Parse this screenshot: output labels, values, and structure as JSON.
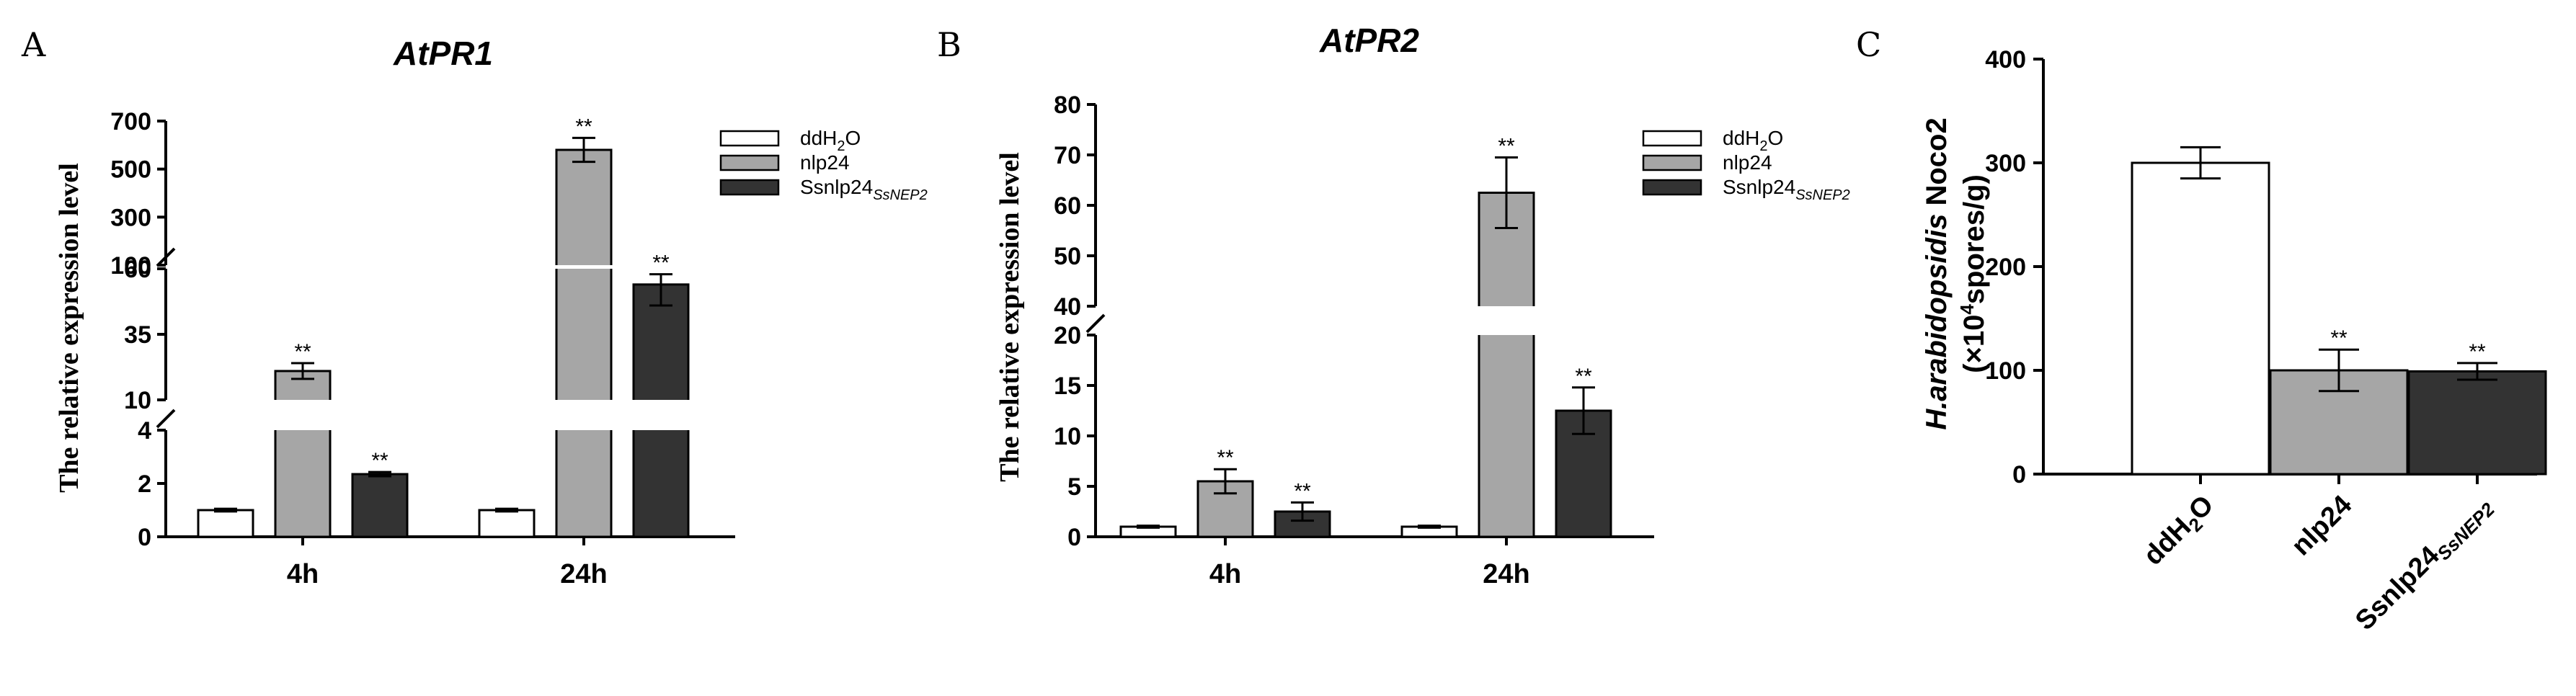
{
  "panels": {
    "A": {
      "letter": "A"
    },
    "B": {
      "letter": "B"
    },
    "C": {
      "letter": "C"
    }
  },
  "legend": {
    "items": [
      {
        "name": "ddH2O",
        "base": "ddH",
        "sub": "2",
        "tail": "O",
        "color": "#ffffff"
      },
      {
        "name": "nlp24",
        "base": "nlp24",
        "sub": "",
        "tail": "",
        "color": "#a6a6a6"
      },
      {
        "name": "Ssnlp24SsNEP2",
        "base": "Ssnlp24",
        "sub": "SsNEP2",
        "tail": "",
        "color": "#333333"
      }
    ]
  },
  "chart_data": [
    {
      "panel": "A",
      "type": "bar",
      "title": "AtPR1",
      "ylabel": "The relative expression level",
      "categories": [
        "4h",
        "24h"
      ],
      "broken_axis": true,
      "y_segments": [
        {
          "range": [
            0,
            4
          ],
          "ticks": [
            "0",
            "2",
            "4"
          ]
        },
        {
          "range": [
            10,
            60
          ],
          "ticks": [
            "10",
            "35",
            "60"
          ]
        },
        {
          "range": [
            100,
            700
          ],
          "ticks": [
            "100",
            "300",
            "500",
            "700"
          ]
        }
      ],
      "series": [
        {
          "name": "ddH2O",
          "values": [
            1.0,
            1.0
          ],
          "errors": [
            0.05,
            0.05
          ],
          "sig": [
            "",
            ""
          ]
        },
        {
          "name": "nlp24",
          "values": [
            21,
            580
          ],
          "errors": [
            3,
            50
          ],
          "sig": [
            "**",
            "**"
          ]
        },
        {
          "name": "Ssnlp24SsNEP2",
          "values": [
            2.35,
            54
          ],
          "errors": [
            0.08,
            8
          ],
          "sig": [
            "**",
            "**"
          ]
        }
      ]
    },
    {
      "panel": "B",
      "type": "bar",
      "title": "AtPR2",
      "ylabel": "The relative expression level",
      "categories": [
        "4h",
        "24h"
      ],
      "broken_axis": true,
      "y_segments": [
        {
          "range": [
            0,
            20
          ],
          "ticks": [
            "0",
            "5",
            "10",
            "15",
            "20"
          ]
        },
        {
          "range": [
            40,
            80
          ],
          "ticks": [
            "40",
            "50",
            "60",
            "70",
            "80"
          ]
        }
      ],
      "series": [
        {
          "name": "ddH2O",
          "values": [
            1.0,
            1.0
          ],
          "errors": [
            0.1,
            0.1
          ],
          "sig": [
            "",
            ""
          ]
        },
        {
          "name": "nlp24",
          "values": [
            5.5,
            62.5
          ],
          "errors": [
            1.2,
            7
          ],
          "sig": [
            "**",
            "**"
          ]
        },
        {
          "name": "Ssnlp24SsNEP2",
          "values": [
            2.5,
            12.5
          ],
          "errors": [
            0.9,
            2.3
          ],
          "sig": [
            "**",
            "**"
          ]
        }
      ]
    },
    {
      "panel": "C",
      "type": "bar",
      "ylabel": "H.arabidopsidis Noco2 (×10⁴spores/g)",
      "ylabel_italic_part": "H.arabidopsidis",
      "ylabel_rest": " Noco2",
      "ylabel_line2_pre": "(×10",
      "ylabel_line2_sup": "4",
      "ylabel_line2_post": "spores/g)",
      "categories": [
        "ddH2O",
        "nlp24",
        "Ssnlp24SsNEP2"
      ],
      "ylim": [
        0,
        400
      ],
      "yticks": [
        "0",
        "100",
        "200",
        "300",
        "400"
      ],
      "values": [
        300,
        100,
        99
      ],
      "errors": [
        15,
        20,
        8
      ],
      "colors": [
        "#ffffff",
        "#a6a6a6",
        "#333333"
      ],
      "sig": [
        "",
        "**",
        "**"
      ]
    }
  ]
}
